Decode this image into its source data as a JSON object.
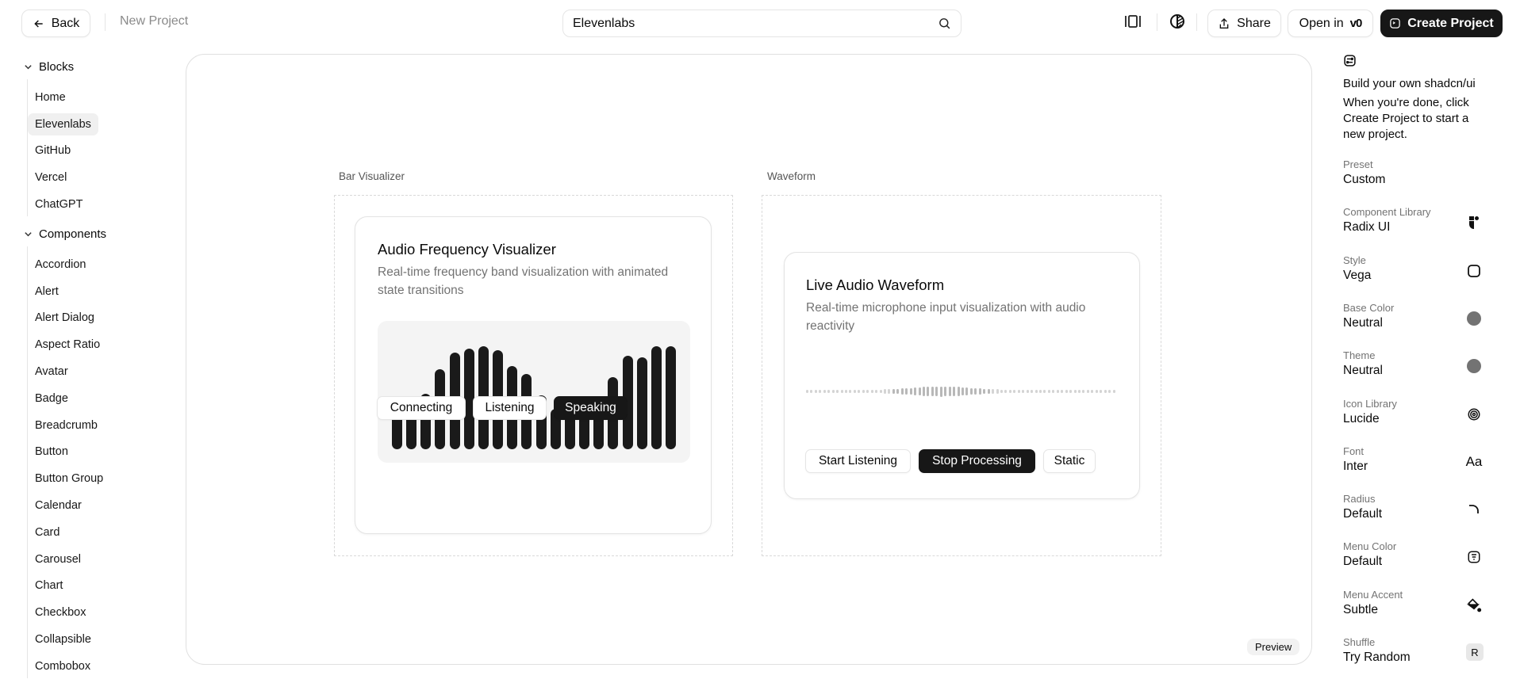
{
  "header": {
    "back_label": "Back",
    "project_name": "New Project",
    "search_value": "Elevenlabs",
    "share_label": "Share",
    "open_in_label": "Open in",
    "open_in_logo": "v0",
    "create_label": "Create Project"
  },
  "sidebar": {
    "groups": [
      {
        "label": "Blocks",
        "items": [
          "Home",
          "Elevenlabs",
          "GitHub",
          "Vercel",
          "ChatGPT"
        ]
      },
      {
        "label": "Components",
        "items": [
          "Accordion",
          "Alert",
          "Alert Dialog",
          "Aspect Ratio",
          "Avatar",
          "Badge",
          "Breadcrumb",
          "Button",
          "Button Group",
          "Calendar",
          "Card",
          "Carousel",
          "Chart",
          "Checkbox",
          "Collapsible",
          "Combobox"
        ]
      }
    ],
    "active": "Elevenlabs"
  },
  "preview": {
    "bar_section_label": "Bar Visualizer",
    "wave_section_label": "Waveform",
    "badge": "Preview",
    "bar_card": {
      "title": "Audio Frequency Visualizer",
      "description": "Real-time frequency band visualization with animated state transitions",
      "levels": [
        0.44,
        0.47,
        0.54,
        0.78,
        0.94,
        0.98,
        1.0,
        0.96,
        0.81,
        0.73,
        0.52,
        0.39,
        0.45,
        0.45,
        0.47,
        0.7,
        0.91,
        0.89,
        1.0,
        1.0
      ],
      "buttons": [
        "Connecting",
        "Listening",
        "Speaking"
      ],
      "active_button": "Speaking"
    },
    "wave_card": {
      "title": "Live Audio Waveform",
      "description": "Real-time microphone input visualization with audio reactivity",
      "buttons": [
        "Start Listening",
        "Stop Processing",
        "Static"
      ],
      "active_button": "Stop Processing"
    }
  },
  "right_panel": {
    "title": "Build your own shadcn/ui",
    "description": "When you're done, click Create Project to start a new project.",
    "settings": [
      {
        "label": "Preset",
        "value": "Custom",
        "icon": "none"
      },
      {
        "label": "Component Library",
        "value": "Radix UI",
        "icon": "radix-icon"
      },
      {
        "label": "Style",
        "value": "Vega",
        "icon": "square-icon"
      },
      {
        "label": "Base Color",
        "value": "Neutral",
        "icon": "color-dot-icon",
        "color": "#737373"
      },
      {
        "label": "Theme",
        "value": "Neutral",
        "icon": "color-dot-icon",
        "color": "#737373"
      },
      {
        "label": "Icon Library",
        "value": "Lucide",
        "icon": "spiral-icon"
      },
      {
        "label": "Font",
        "value": "Inter",
        "icon": "font-icon",
        "glyph": "Aa"
      },
      {
        "label": "Radius",
        "value": "Default",
        "icon": "radius-icon"
      },
      {
        "label": "Menu Color",
        "value": "Default",
        "icon": "menu-icon"
      },
      {
        "label": "Menu Accent",
        "value": "Subtle",
        "icon": "paint-bucket-icon"
      },
      {
        "label": "Shuffle",
        "value": "Try Random",
        "icon": "keyboard-key-icon",
        "glyph": "R"
      }
    ]
  }
}
